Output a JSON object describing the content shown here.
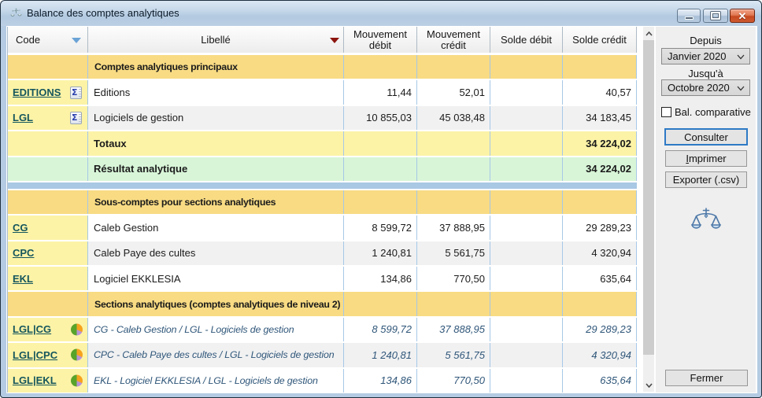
{
  "window": {
    "title": "Balance des comptes analytiques",
    "controls": {
      "minimize": "minimize",
      "maximize": "maximize",
      "close": "close"
    }
  },
  "colors": {
    "frame_blue": "#b5cbe3",
    "group_row": "#f8db83",
    "code_column": "#fcf3a7",
    "result_row": "#d8f5d8",
    "grid_line": "#a6c8e6",
    "link": "#15565c",
    "italic_text": "#2f5679",
    "default_button_border": "#2e7ac6",
    "close_button": "#c74921"
  },
  "table": {
    "columns": [
      {
        "key": "code",
        "label": "Code",
        "sort_icon": "blue-down-arrow"
      },
      {
        "key": "libelle",
        "label": "Libellé",
        "sort_icon": "red-down-arrow"
      },
      {
        "key": "mvt_debit",
        "label": "Mouvement débit"
      },
      {
        "key": "mvt_credit",
        "label": "Mouvement crédit"
      },
      {
        "key": "solde_debit",
        "label": "Solde débit"
      },
      {
        "key": "solde_credit",
        "label": "Solde crédit"
      }
    ],
    "rows": [
      {
        "type": "group",
        "label": "Comptes analytiques principaux"
      },
      {
        "type": "data",
        "code": "EDITIONS",
        "sigma": true,
        "label": "Editions",
        "mvt_debit": "11,44",
        "mvt_credit": "52,01",
        "solde_debit": "",
        "solde_credit": "40,57",
        "alt": false
      },
      {
        "type": "data",
        "code": "LGL",
        "sigma": true,
        "label": "Logiciels de gestion",
        "mvt_debit": "10 855,03",
        "mvt_credit": "45 038,48",
        "solde_debit": "",
        "solde_credit": "34 183,45",
        "alt": true
      },
      {
        "type": "totals",
        "label": "Totaux",
        "mvt_debit": "",
        "mvt_credit": "",
        "solde_debit": "",
        "solde_credit": "34 224,02"
      },
      {
        "type": "result",
        "label": "Résultat analytique",
        "mvt_debit": "",
        "mvt_credit": "",
        "solde_debit": "",
        "solde_credit": "34 224,02"
      },
      {
        "type": "separator"
      },
      {
        "type": "group",
        "label": "Sous-comptes pour sections analytiques"
      },
      {
        "type": "data",
        "code": "CG",
        "label": "Caleb Gestion",
        "mvt_debit": "8 599,72",
        "mvt_credit": "37 888,95",
        "solde_debit": "",
        "solde_credit": "29 289,23",
        "alt": false
      },
      {
        "type": "data",
        "code": "CPC",
        "label": "Caleb Paye des cultes",
        "mvt_debit": "1 240,81",
        "mvt_credit": "5 561,75",
        "solde_debit": "",
        "solde_credit": "4 320,94",
        "alt": true
      },
      {
        "type": "data",
        "code": "EKL",
        "label": "Logiciel EKKLESIA",
        "mvt_debit": "134,86",
        "mvt_credit": "770,50",
        "solde_debit": "",
        "solde_credit": "635,64",
        "alt": false
      },
      {
        "type": "group",
        "label": "Sections analytiques (comptes analytiques de niveau 2)"
      },
      {
        "type": "data",
        "code": "LGL|CG",
        "pie": true,
        "italic": true,
        "label": "CG - Caleb Gestion / LGL - Logiciels de gestion",
        "mvt_debit": "8 599,72",
        "mvt_credit": "37 888,95",
        "solde_debit": "",
        "solde_credit": "29 289,23",
        "alt": false
      },
      {
        "type": "data",
        "code": "LGL|CPC",
        "pie": true,
        "italic": true,
        "label": "CPC - Caleb Paye des cultes / LGL - Logiciels de gestion",
        "mvt_debit": "1 240,81",
        "mvt_credit": "5 561,75",
        "solde_debit": "",
        "solde_credit": "4 320,94",
        "alt": true
      },
      {
        "type": "data",
        "code": "LGL|EKL",
        "pie": true,
        "italic": true,
        "label": "EKL - Logiciel EKKLESIA / LGL - Logiciels de gestion",
        "mvt_debit": "134,86",
        "mvt_credit": "770,50",
        "solde_debit": "",
        "solde_credit": "635,64",
        "alt": false
      }
    ]
  },
  "scrollbar": {
    "orientation": "vertical",
    "thumb_position": "top"
  },
  "sidebar": {
    "depuis_label": "Depuis",
    "depuis_value": "Janvier 2020",
    "jusqua_label": "Jusqu'à",
    "jusqua_value": "Octobre 2020",
    "checkbox_label": "Bal. comparative",
    "checkbox_checked": false,
    "buttons": [
      {
        "id": "consulter",
        "label": "Consulter",
        "default": true
      },
      {
        "id": "imprimer",
        "label": "Imprimer",
        "mnemonic": true
      },
      {
        "id": "exporter",
        "label": "Exporter (.csv)"
      }
    ],
    "fermer_label": "Fermer",
    "icon": "balance-scales"
  }
}
